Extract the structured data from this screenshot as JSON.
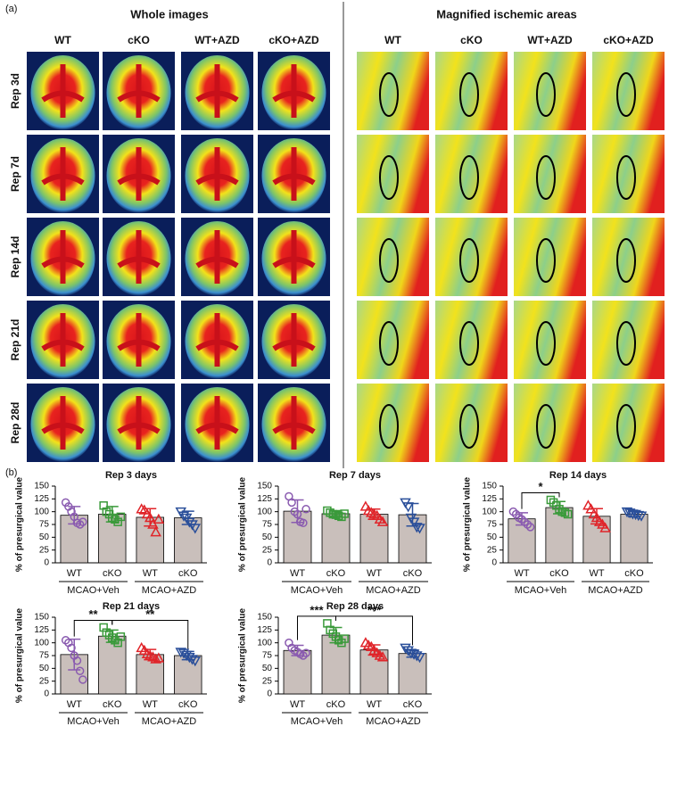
{
  "panel_a": {
    "label": "(a)",
    "headers": [
      "Whole images",
      "Magnified ischemic areas"
    ],
    "columns": [
      "WT",
      "cKO",
      "WT+AZD",
      "cKO+AZD"
    ],
    "rows": [
      "Rep 3d",
      "Rep 7d",
      "Rep 14d",
      "Rep 21d",
      "Rep 28d"
    ]
  },
  "panel_b": {
    "label": "(b)"
  },
  "chart_data": [
    {
      "type": "bar",
      "title": "Rep 3 days",
      "ylabel": "% of presurgical value",
      "categories": [
        "WT",
        "cKO",
        "WT",
        "cKO"
      ],
      "groups": [
        "MCAO+Veh",
        "MCAO+AZD"
      ],
      "values": [
        93,
        95,
        89,
        88
      ],
      "errors": [
        17,
        15,
        17,
        13
      ],
      "points": [
        [
          118,
          110,
          100,
          90,
          78,
          75,
          80
        ],
        [
          112,
          100,
          95,
          88,
          85,
          80,
          90
        ],
        [
          105,
          103,
          95,
          88,
          75,
          60,
          85
        ],
        [
          100,
          92,
          88,
          80,
          75,
          68
        ]
      ],
      "colors": [
        "#8a5bb0",
        "#3a9a3a",
        "#e0252a",
        "#2a4f9a"
      ],
      "markers": [
        "circle",
        "square",
        "triangle",
        "triangle-down"
      ],
      "bar_color": "#c9bfbb",
      "ylim": [
        0,
        150
      ],
      "yticks": [
        0,
        25,
        50,
        75,
        100,
        125,
        150
      ],
      "significance": []
    },
    {
      "type": "bar",
      "title": "Rep 7 days",
      "ylabel": "% of presurgical value",
      "categories": [
        "WT",
        "cKO",
        "WT",
        "cKO"
      ],
      "groups": [
        "MCAO+Veh",
        "MCAO+AZD"
      ],
      "values": [
        101,
        96,
        95,
        94
      ],
      "errors": [
        22,
        6,
        10,
        22
      ],
      "points": [
        [
          130,
          118,
          100,
          95,
          80,
          78,
          105
        ],
        [
          102,
          98,
          95,
          94,
          92,
          90,
          96
        ],
        [
          110,
          102,
          98,
          95,
          92,
          85,
          80
        ],
        [
          118,
          110,
          88,
          80,
          70,
          68
        ]
      ],
      "colors": [
        "#8a5bb0",
        "#3a9a3a",
        "#e0252a",
        "#2a4f9a"
      ],
      "markers": [
        "circle",
        "square",
        "triangle",
        "triangle-down"
      ],
      "bar_color": "#c9bfbb",
      "ylim": [
        0,
        150
      ],
      "yticks": [
        0,
        25,
        50,
        75,
        100,
        125,
        150
      ],
      "significance": []
    },
    {
      "type": "bar",
      "title": "Rep 14 days",
      "ylabel": "% of presurgical value",
      "categories": [
        "WT",
        "cKO",
        "WT",
        "cKO"
      ],
      "groups": [
        "MCAO+Veh",
        "MCAO+AZD"
      ],
      "values": [
        86,
        108,
        91,
        95
      ],
      "errors": [
        12,
        12,
        15,
        5
      ],
      "points": [
        [
          100,
          95,
          88,
          85,
          80,
          75,
          70
        ],
        [
          123,
          118,
          112,
          105,
          100,
          98,
          95
        ],
        [
          112,
          105,
          95,
          88,
          80,
          75,
          68
        ],
        [
          100,
          98,
          96,
          95,
          93,
          92
        ]
      ],
      "colors": [
        "#8a5bb0",
        "#3a9a3a",
        "#e0252a",
        "#2a4f9a"
      ],
      "markers": [
        "circle",
        "square",
        "triangle",
        "triangle-down"
      ],
      "bar_color": "#c9bfbb",
      "ylim": [
        0,
        150
      ],
      "yticks": [
        0,
        25,
        50,
        75,
        100,
        125,
        150
      ],
      "significance": [
        {
          "between": [
            0,
            1
          ],
          "label": "*"
        }
      ]
    },
    {
      "type": "bar",
      "title": "Rep 21 days",
      "ylabel": "% of presurgical value",
      "categories": [
        "WT",
        "cKO",
        "WT",
        "cKO"
      ],
      "groups": [
        "MCAO+Veh",
        "MCAO+AZD"
      ],
      "values": [
        77,
        113,
        77,
        75
      ],
      "errors": [
        30,
        12,
        10,
        8
      ],
      "points": [
        [
          105,
          100,
          90,
          75,
          65,
          45,
          28
        ],
        [
          130,
          120,
          115,
          110,
          105,
          100,
          112
        ],
        [
          90,
          85,
          78,
          75,
          72,
          68,
          70
        ],
        [
          82,
          80,
          76,
          72,
          68,
          65
        ]
      ],
      "colors": [
        "#8a5bb0",
        "#3a9a3a",
        "#e0252a",
        "#2a4f9a"
      ],
      "markers": [
        "circle",
        "square",
        "triangle",
        "triangle-down"
      ],
      "bar_color": "#c9bfbb",
      "ylim": [
        0,
        150
      ],
      "yticks": [
        0,
        25,
        50,
        75,
        100,
        125,
        150
      ],
      "significance": [
        {
          "between": [
            0,
            1
          ],
          "label": "**"
        },
        {
          "between": [
            1,
            3
          ],
          "label": "**"
        }
      ]
    },
    {
      "type": "bar",
      "title": "Rep 28 days",
      "ylabel": "% of presurgical value",
      "categories": [
        "WT",
        "cKO",
        "WT",
        "cKO"
      ],
      "groups": [
        "MCAO+Veh",
        "MCAO+AZD"
      ],
      "values": [
        85,
        115,
        86,
        79
      ],
      "errors": [
        10,
        15,
        10,
        7
      ],
      "points": [
        [
          100,
          90,
          85,
          82,
          78,
          75,
          80
        ],
        [
          138,
          125,
          118,
          112,
          105,
          100,
          108
        ],
        [
          100,
          95,
          92,
          85,
          80,
          75,
          72
        ],
        [
          90,
          85,
          80,
          78,
          75,
          72
        ]
      ],
      "colors": [
        "#8a5bb0",
        "#3a9a3a",
        "#e0252a",
        "#2a4f9a"
      ],
      "markers": [
        "circle",
        "square",
        "triangle",
        "triangle-down"
      ],
      "bar_color": "#c9bfbb",
      "ylim": [
        0,
        150
      ],
      "yticks": [
        0,
        25,
        50,
        75,
        100,
        125,
        150
      ],
      "significance": [
        {
          "between": [
            0,
            1
          ],
          "label": "***"
        },
        {
          "between": [
            1,
            3
          ],
          "label": "***"
        }
      ]
    }
  ]
}
